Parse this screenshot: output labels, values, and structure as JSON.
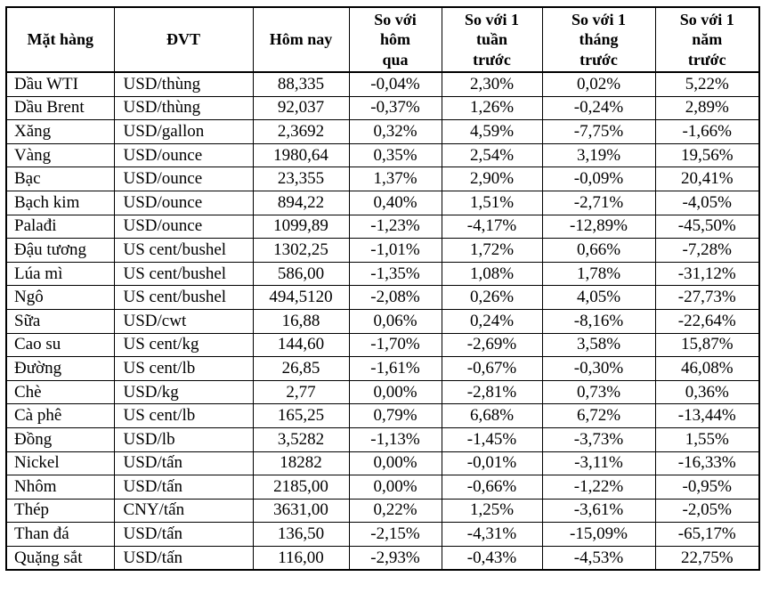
{
  "colors": {
    "text": "#000000",
    "border": "#000000",
    "background": "#ffffff"
  },
  "table": {
    "columns": [
      {
        "label": "Mặt hàng"
      },
      {
        "label": "ĐVT"
      },
      {
        "label": "Hôm nay"
      },
      {
        "label": "So với\nhôm\nqua"
      },
      {
        "label": "So với 1\ntuần\ntrước"
      },
      {
        "label": "So với 1\ntháng\ntrước"
      },
      {
        "label": "So với 1\nnăm\ntrước"
      }
    ],
    "rows": [
      {
        "name": "Dầu WTI",
        "unit": "USD/thùng",
        "today": "88,335",
        "vs_yesterday": "-0,04%",
        "vs_week": "2,30%",
        "vs_month": "0,02%",
        "vs_year": "5,22%"
      },
      {
        "name": "Dầu Brent",
        "unit": "USD/thùng",
        "today": "92,037",
        "vs_yesterday": "-0,37%",
        "vs_week": "1,26%",
        "vs_month": "-0,24%",
        "vs_year": "2,89%"
      },
      {
        "name": "Xăng",
        "unit": "USD/gallon",
        "today": "2,3692",
        "vs_yesterday": "0,32%",
        "vs_week": "4,59%",
        "vs_month": "-7,75%",
        "vs_year": "-1,66%"
      },
      {
        "name": "Vàng",
        "unit": "USD/ounce",
        "today": "1980,64",
        "vs_yesterday": "0,35%",
        "vs_week": "2,54%",
        "vs_month": "3,19%",
        "vs_year": "19,56%"
      },
      {
        "name": "Bạc",
        "unit": "USD/ounce",
        "today": "23,355",
        "vs_yesterday": "1,37%",
        "vs_week": "2,90%",
        "vs_month": "-0,09%",
        "vs_year": "20,41%"
      },
      {
        "name": "Bạch kim",
        "unit": "USD/ounce",
        "today": "894,22",
        "vs_yesterday": "0,40%",
        "vs_week": "1,51%",
        "vs_month": "-2,71%",
        "vs_year": "-4,05%"
      },
      {
        "name": "Palađi",
        "unit": "USD/ounce",
        "today": "1099,89",
        "vs_yesterday": "-1,23%",
        "vs_week": "-4,17%",
        "vs_month": "-12,89%",
        "vs_year": "-45,50%"
      },
      {
        "name": "Đậu tương",
        "unit": "US cent/bushel",
        "today": "1302,25",
        "vs_yesterday": "-1,01%",
        "vs_week": "1,72%",
        "vs_month": "0,66%",
        "vs_year": "-7,28%"
      },
      {
        "name": "Lúa mì",
        "unit": "US cent/bushel",
        "today": "586,00",
        "vs_yesterday": "-1,35%",
        "vs_week": "1,08%",
        "vs_month": "1,78%",
        "vs_year": "-31,12%"
      },
      {
        "name": "Ngô",
        "unit": "US cent/bushel",
        "today": "494,5120",
        "vs_yesterday": "-2,08%",
        "vs_week": "0,26%",
        "vs_month": "4,05%",
        "vs_year": "-27,73%"
      },
      {
        "name": "Sữa",
        "unit": "USD/cwt",
        "today": "16,88",
        "vs_yesterday": "0,06%",
        "vs_week": "0,24%",
        "vs_month": "-8,16%",
        "vs_year": "-22,64%"
      },
      {
        "name": "Cao su",
        "unit": "US cent/kg",
        "today": "144,60",
        "vs_yesterday": "-1,70%",
        "vs_week": "-2,69%",
        "vs_month": "3,58%",
        "vs_year": "15,87%"
      },
      {
        "name": "Đường",
        "unit": "US cent/lb",
        "today": "26,85",
        "vs_yesterday": "-1,61%",
        "vs_week": "-0,67%",
        "vs_month": "-0,30%",
        "vs_year": "46,08%"
      },
      {
        "name": "Chè",
        "unit": "USD/kg",
        "today": "2,77",
        "vs_yesterday": "0,00%",
        "vs_week": "-2,81%",
        "vs_month": "0,73%",
        "vs_year": "0,36%"
      },
      {
        "name": "Cà phê",
        "unit": "US cent/lb",
        "today": "165,25",
        "vs_yesterday": "0,79%",
        "vs_week": "6,68%",
        "vs_month": "6,72%",
        "vs_year": "-13,44%"
      },
      {
        "name": "Đồng",
        "unit": "USD/lb",
        "today": "3,5282",
        "vs_yesterday": "-1,13%",
        "vs_week": "-1,45%",
        "vs_month": "-3,73%",
        "vs_year": "1,55%"
      },
      {
        "name": "Nickel",
        "unit": "USD/tấn",
        "today": "18282",
        "vs_yesterday": "0,00%",
        "vs_week": "-0,01%",
        "vs_month": "-3,11%",
        "vs_year": "-16,33%"
      },
      {
        "name": "Nhôm",
        "unit": "USD/tấn",
        "today": "2185,00",
        "vs_yesterday": "0,00%",
        "vs_week": "-0,66%",
        "vs_month": "-1,22%",
        "vs_year": "-0,95%"
      },
      {
        "name": "Thép",
        "unit": "CNY/tấn",
        "today": "3631,00",
        "vs_yesterday": "0,22%",
        "vs_week": "1,25%",
        "vs_month": "-3,61%",
        "vs_year": "-2,05%"
      },
      {
        "name": "Than đá",
        "unit": "USD/tấn",
        "today": "136,50",
        "vs_yesterday": "-2,15%",
        "vs_week": "-4,31%",
        "vs_month": "-15,09%",
        "vs_year": "-65,17%"
      },
      {
        "name": "Quặng sắt",
        "unit": "USD/tấn",
        "today": "116,00",
        "vs_yesterday": "-2,93%",
        "vs_week": "-0,43%",
        "vs_month": "-4,53%",
        "vs_year": "22,75%"
      }
    ]
  }
}
